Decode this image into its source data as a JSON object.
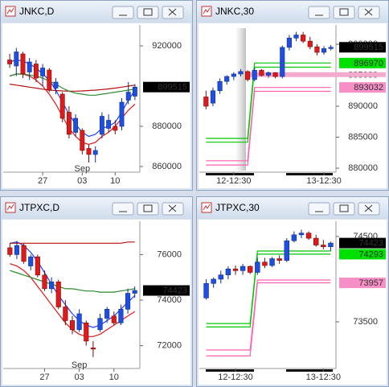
{
  "chart_data": [
    {
      "type": "candlestick",
      "title": "JNKC,D",
      "categories": [
        null,
        null,
        null,
        null,
        null,
        "27",
        null,
        null,
        null,
        null,
        null,
        "03",
        null,
        null,
        null,
        null,
        "10",
        null,
        null,
        null
      ],
      "month_row": [
        null,
        null,
        null,
        null,
        null,
        null,
        null,
        null,
        null,
        null,
        null,
        "Sep",
        null,
        null,
        null,
        null,
        null,
        null,
        null,
        null
      ],
      "open": [
        913000,
        910000,
        916000,
        907000,
        911000,
        905000,
        908000,
        899000,
        896000,
        887000,
        877000,
        878000,
        869000,
        866000,
        876000,
        879000,
        880000,
        880000,
        893000,
        895000
      ],
      "high": [
        916000,
        919000,
        917000,
        914000,
        913000,
        911000,
        909000,
        904000,
        897000,
        890000,
        886000,
        879000,
        871000,
        870000,
        887000,
        886000,
        883000,
        894000,
        902000,
        901000
      ],
      "low": [
        909000,
        905000,
        904000,
        903000,
        902000,
        900000,
        897000,
        896000,
        882000,
        874000,
        875000,
        866000,
        862000,
        862000,
        874000,
        877000,
        876000,
        878000,
        891000,
        893000
      ],
      "close": [
        911000,
        917000,
        906000,
        912000,
        904000,
        909000,
        898000,
        902000,
        884000,
        876000,
        884000,
        868000,
        866000,
        868000,
        885000,
        883000,
        878000,
        892000,
        897000,
        899515
      ],
      "lines": [
        {
          "color": "#1f3fff",
          "values": [
            912000,
            913000,
            912500,
            911000,
            909000,
            906000,
            903000,
            898000,
            892000,
            886000,
            881000,
            877000,
            875000,
            876000,
            879000,
            880000,
            882000,
            887000,
            893000,
            898000
          ]
        },
        {
          "color": "#e01818",
          "values": [
            905000,
            906000,
            906000,
            905000,
            903000,
            900000,
            896000,
            891000,
            885000,
            879000,
            875000,
            872000,
            871000,
            872000,
            875000,
            877000,
            880000,
            884000,
            888000,
            891000
          ]
        },
        {
          "color": "#b81010",
          "values": [
            901000,
            900500,
            900000,
            899500,
            899000,
            898500,
            898000,
            897800,
            897600,
            897500,
            897500,
            897600,
            897800,
            898000,
            898300,
            898600,
            899000,
            899500,
            900000,
            900500
          ]
        },
        {
          "color": "#2a8a2a",
          "values": [
            905000,
            906000,
            906000,
            905500,
            905000,
            904000,
            902500,
            901000,
            899000,
            897500,
            896500,
            896000,
            895500,
            895500,
            896000,
            896500,
            897000,
            897500,
            898000,
            898500
          ]
        }
      ],
      "ylim": [
        858000,
        928800
      ],
      "yticks": [
        860000,
        880000,
        920000
      ],
      "price_labels": [
        {
          "value": 899515,
          "color": "#000000"
        }
      ]
    },
    {
      "type": "candlestick",
      "title": "JNKC,30",
      "categories": [
        null,
        null,
        null,
        null,
        "12-12:30",
        null,
        null,
        null,
        null,
        null,
        null,
        null,
        null,
        null,
        null,
        null,
        null,
        "13-12:30",
        null
      ],
      "open": [
        891500,
        890500,
        892500,
        894000,
        894800,
        895200,
        895600,
        894300,
        895800,
        895000,
        895400,
        894800,
        899500,
        901000,
        901500,
        900500,
        899600,
        898700,
        899300
      ],
      "high": [
        892500,
        893000,
        894500,
        895000,
        895500,
        896000,
        895800,
        896200,
        896000,
        895600,
        895500,
        899800,
        901500,
        902000,
        902000,
        901200,
        900000,
        899700,
        899900
      ],
      "low": [
        889500,
        890000,
        892000,
        893500,
        894200,
        894800,
        894000,
        894000,
        894800,
        894600,
        894500,
        894500,
        899000,
        900500,
        900200,
        899200,
        898200,
        898300,
        899000
      ],
      "close": [
        890000,
        892500,
        894000,
        894800,
        895200,
        895600,
        894300,
        895800,
        895000,
        895400,
        894800,
        899500,
        901000,
        901500,
        900500,
        899600,
        898700,
        899300,
        899515
      ],
      "bands": [
        {
          "color": "#00c800",
          "values": [
            884800,
            884800,
            884800,
            884800,
            884800,
            884800,
            884800,
            896970,
            896970,
            896970,
            896970,
            896970,
            896970,
            896970,
            896970,
            896970,
            896970,
            896970,
            896970
          ]
        },
        {
          "color": "#00c800",
          "values": [
            884200,
            884200,
            884200,
            884200,
            884200,
            884200,
            884200,
            896300,
            896300,
            896300,
            896300,
            896300,
            896300,
            896300,
            896300,
            896300,
            896300,
            896300,
            896300
          ]
        },
        {
          "color": "#ff5fb0",
          "values": [
            881200,
            881200,
            881200,
            881200,
            881200,
            881200,
            881200,
            893032,
            893032,
            893032,
            893032,
            893032,
            893032,
            893032,
            893032,
            893032,
            893032,
            893032,
            893032
          ]
        },
        {
          "color": "#ff5fb0",
          "values": [
            880500,
            880500,
            880500,
            880500,
            880500,
            880500,
            880500,
            892400,
            892400,
            892400,
            892400,
            892400,
            892400,
            892400,
            892400,
            892400,
            892400,
            892400,
            892400
          ]
        }
      ],
      "level": {
        "value": 895100,
        "color": "#f5a9cd"
      },
      "ylim": [
        879610,
        902600
      ],
      "yticks": [
        880000,
        885000,
        890000,
        895000,
        900000
      ],
      "price_labels": [
        {
          "value": 899515,
          "color": "#000000"
        },
        {
          "value": 896970,
          "color": "#00e000"
        },
        {
          "value": 893032,
          "color": "#f78fc7"
        }
      ]
    },
    {
      "type": "candlestick",
      "title": "JTPXC,D",
      "categories": [
        null,
        null,
        null,
        null,
        null,
        "27",
        null,
        null,
        null,
        null,
        "03",
        null,
        null,
        null,
        null,
        "10",
        null,
        null,
        null
      ],
      "month_row": [
        null,
        null,
        null,
        null,
        null,
        null,
        null,
        null,
        null,
        null,
        "Sep",
        null,
        null,
        null,
        null,
        null,
        null,
        null,
        null
      ],
      "open": [
        76300,
        76000,
        76400,
        75500,
        75900,
        75100,
        74500,
        74800,
        73700,
        73100,
        72700,
        73000,
        71900,
        72700,
        73200,
        73300,
        73000,
        73600,
        74300
      ],
      "high": [
        76500,
        76600,
        76500,
        76000,
        76000,
        75300,
        75000,
        74900,
        74000,
        73300,
        73600,
        73100,
        72200,
        73400,
        73700,
        73500,
        73800,
        74500,
        74600
      ],
      "low": [
        75900,
        75800,
        75600,
        75300,
        75000,
        74400,
        74300,
        73600,
        72900,
        72500,
        72600,
        72000,
        71500,
        72600,
        73000,
        72900,
        72900,
        73400,
        74100
      ],
      "close": [
        76000,
        76400,
        75700,
        75900,
        75100,
        74500,
        74800,
        73700,
        73100,
        72700,
        73400,
        72200,
        71850,
        73200,
        73600,
        73000,
        73600,
        74300,
        74423
      ],
      "lines": [
        {
          "color": "#1f3fff",
          "values": [
            76500,
            76550,
            76400,
            76100,
            75700,
            75200,
            74700,
            74200,
            73800,
            73400,
            73100,
            72900,
            72800,
            72900,
            73100,
            73300,
            73600,
            73900,
            74200
          ]
        },
        {
          "color": "#e01818",
          "values": [
            75600,
            75500,
            75300,
            75000,
            74600,
            74200,
            73800,
            73400,
            73000,
            72700,
            72500,
            72400,
            72400,
            72500,
            72700,
            72900,
            73100,
            73300,
            73500
          ]
        },
        {
          "color": "#b81010",
          "values": [
            76500,
            76500,
            76500,
            76500,
            76500,
            76500,
            76500,
            76500,
            76500,
            76500,
            76500,
            76500,
            76500,
            76500,
            76500,
            76500,
            76500,
            76550,
            76550
          ]
        },
        {
          "color": "#2a8a2a",
          "values": [
            75300,
            75200,
            75100,
            75000,
            74900,
            74800,
            74700,
            74600,
            74500,
            74500,
            74450,
            74400,
            74400,
            74350,
            74350,
            74350,
            74400,
            74450,
            74500
          ]
        }
      ],
      "ylim": [
        71067,
        77322
      ],
      "yticks": [
        72000,
        74000,
        76000
      ],
      "price_labels": [
        {
          "value": 74423,
          "color": "#000000"
        }
      ]
    },
    {
      "type": "candlestick",
      "title": "JTPXC,30",
      "categories": [
        null,
        null,
        null,
        null,
        "12-12:30",
        null,
        null,
        null,
        null,
        null,
        null,
        null,
        null,
        null,
        null,
        null,
        "13-12:30",
        null
      ],
      "open": [
        73780,
        73950,
        74000,
        74050,
        74120,
        74100,
        74150,
        74080,
        74200,
        74160,
        74240,
        74220,
        74450,
        74520,
        74540,
        74480,
        74400,
        74380
      ],
      "high": [
        74000,
        74020,
        74100,
        74150,
        74160,
        74180,
        74160,
        74250,
        74250,
        74260,
        74280,
        74480,
        74560,
        74580,
        74560,
        74520,
        74460,
        74440
      ],
      "low": [
        73760,
        73900,
        73950,
        74000,
        74050,
        74050,
        74060,
        74050,
        74130,
        74140,
        74180,
        74200,
        74430,
        74480,
        74460,
        74380,
        74350,
        74330
      ],
      "close": [
        73950,
        74000,
        74050,
        74120,
        74100,
        74150,
        74080,
        74200,
        74160,
        74240,
        74220,
        74450,
        74520,
        74540,
        74480,
        74400,
        74380,
        74423
      ],
      "bands": [
        {
          "color": "#00c800",
          "values": [
            73480,
            73480,
            73480,
            73480,
            73480,
            73480,
            73480,
            74330,
            74330,
            74330,
            74330,
            74330,
            74330,
            74330,
            74330,
            74330,
            74330,
            74330
          ]
        },
        {
          "color": "#00c800",
          "values": [
            73440,
            73440,
            73440,
            73440,
            73440,
            73440,
            73440,
            74293,
            74293,
            74293,
            74293,
            74293,
            74293,
            74293,
            74293,
            74293,
            74293,
            74293
          ]
        },
        {
          "color": "#ff5fb0",
          "values": [
            73170,
            73170,
            73170,
            73170,
            73170,
            73170,
            73170,
            73990,
            73990,
            73990,
            73990,
            73990,
            73990,
            73990,
            73990,
            73990,
            73990,
            73990
          ]
        },
        {
          "color": "#ff5fb0",
          "values": [
            73100,
            73100,
            73100,
            73100,
            73100,
            73100,
            73100,
            73957,
            73957,
            73957,
            73957,
            73957,
            73957,
            73957,
            73957,
            73957,
            73957,
            73957
          ]
        }
      ],
      "ylim": [
        72972,
        74641
      ],
      "yticks": [
        73500,
        74500
      ],
      "price_labels": [
        {
          "value": 74423,
          "color": "#000000"
        },
        {
          "value": 74293,
          "color": "#00e000"
        },
        {
          "value": 73957,
          "color": "#f78fc7"
        }
      ]
    }
  ]
}
